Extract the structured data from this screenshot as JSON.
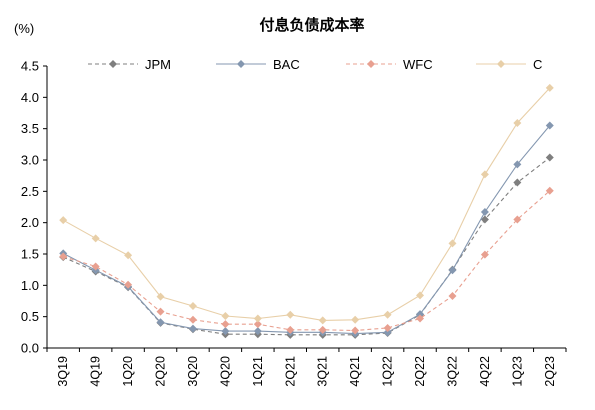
{
  "chart_data": {
    "type": "line",
    "title": "付息负债成本率",
    "unit_label": "(%)",
    "ylim": [
      0,
      4.5
    ],
    "ytick_step": 0.5,
    "ytick_labels": [
      "0.0",
      "0.5",
      "1.0",
      "1.5",
      "2.0",
      "2.5",
      "3.0",
      "3.5",
      "4.0",
      "4.5"
    ],
    "grid": false,
    "legend_position": "top",
    "categories": [
      "3Q19",
      "4Q19",
      "1Q20",
      "2Q20",
      "3Q20",
      "4Q20",
      "1Q21",
      "2Q21",
      "3Q21",
      "4Q21",
      "1Q22",
      "2Q22",
      "3Q22",
      "4Q22",
      "1Q23",
      "2Q23"
    ],
    "series": [
      {
        "name": "JPM",
        "color": "#7f7f7f",
        "dash": "4,3",
        "marker": "diamond",
        "values": [
          1.45,
          1.22,
          0.97,
          0.4,
          0.3,
          0.22,
          0.22,
          0.21,
          0.21,
          0.21,
          0.24,
          0.53,
          1.25,
          2.05,
          2.64,
          3.04
        ]
      },
      {
        "name": "BAC",
        "color": "#8497b0",
        "dash": "",
        "marker": "diamond",
        "values": [
          1.51,
          1.24,
          0.98,
          0.41,
          0.31,
          0.27,
          0.27,
          0.25,
          0.25,
          0.23,
          0.25,
          0.54,
          1.24,
          2.17,
          2.93,
          3.55
        ]
      },
      {
        "name": "WFC",
        "color": "#e8a090",
        "dash": "4,3",
        "marker": "diamond",
        "values": [
          1.46,
          1.3,
          1.01,
          0.58,
          0.45,
          0.38,
          0.38,
          0.29,
          0.29,
          0.28,
          0.32,
          0.47,
          0.83,
          1.49,
          2.05,
          2.51
        ]
      },
      {
        "name": "C",
        "color": "#e8cfa8",
        "dash": "",
        "marker": "diamond",
        "values": [
          2.04,
          1.75,
          1.48,
          0.82,
          0.67,
          0.51,
          0.47,
          0.53,
          0.44,
          0.45,
          0.53,
          0.84,
          1.67,
          2.77,
          3.59,
          4.15
        ]
      }
    ]
  }
}
